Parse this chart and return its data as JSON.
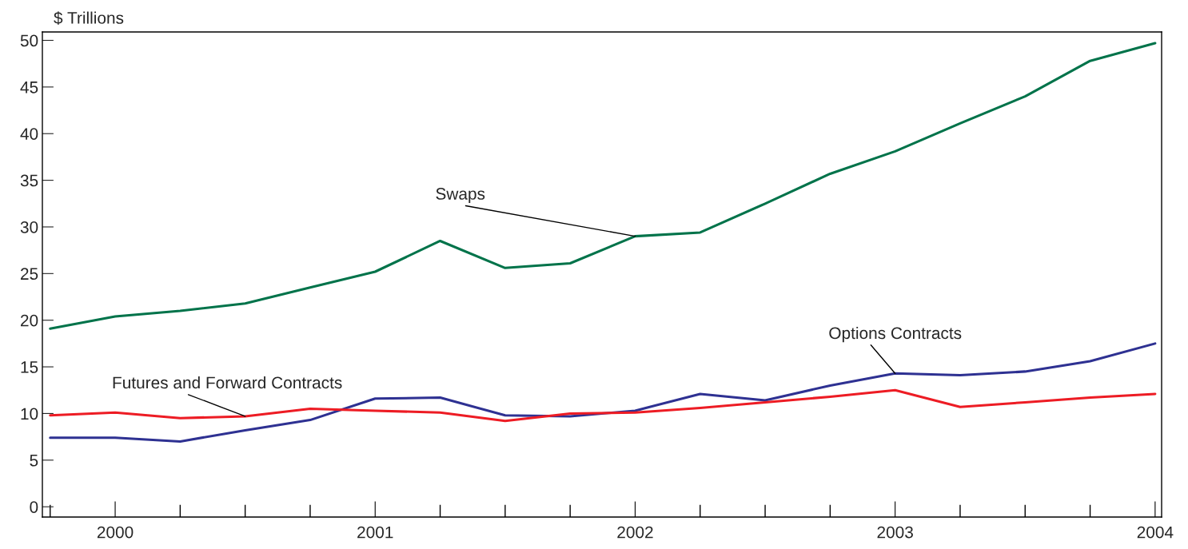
{
  "chart_data": {
    "type": "line",
    "ylabel": "$ Trillions",
    "x": [
      1999.75,
      2000.0,
      2000.25,
      2000.5,
      2000.75,
      2001.0,
      2001.25,
      2001.5,
      2001.75,
      2002.0,
      2002.25,
      2002.5,
      2002.75,
      2003.0,
      2003.25,
      2003.5,
      2003.75,
      2004.0
    ],
    "series": [
      {
        "name": "Swaps",
        "color": "#00734a",
        "values": [
          19.1,
          20.4,
          21.0,
          21.8,
          23.5,
          25.2,
          28.5,
          25.6,
          26.1,
          29.0,
          29.4,
          32.5,
          35.7,
          38.1,
          41.1,
          44.0,
          47.8,
          49.7
        ]
      },
      {
        "name": "Options Contracts",
        "color": "#2e3192",
        "values": [
          7.4,
          7.4,
          7.0,
          8.2,
          9.3,
          11.6,
          11.7,
          9.8,
          9.7,
          10.3,
          12.1,
          11.4,
          13.0,
          14.3,
          14.1,
          14.5,
          15.6,
          17.5
        ]
      },
      {
        "name": "Futures and Forward Contracts",
        "color": "#ed1c24",
        "values": [
          9.8,
          10.1,
          9.5,
          9.7,
          10.5,
          10.3,
          10.1,
          9.2,
          10.0,
          10.1,
          10.6,
          11.2,
          11.8,
          12.5,
          10.7,
          11.2,
          11.7,
          12.1
        ]
      }
    ],
    "xlim": [
      1999.72,
      2004.025
    ],
    "xticks": [
      {
        "value": 1999.75,
        "label": null
      },
      2000,
      {
        "value": 2000.25,
        "label": null
      },
      {
        "value": 2000.5,
        "label": null
      },
      {
        "value": 2000.75,
        "label": null
      },
      2001,
      {
        "value": 2001.25,
        "label": null
      },
      {
        "value": 2001.5,
        "label": null
      },
      {
        "value": 2001.75,
        "label": null
      },
      2002,
      {
        "value": 2002.25,
        "label": null
      },
      {
        "value": 2002.5,
        "label": null
      },
      {
        "value": 2002.75,
        "label": null
      },
      2003,
      {
        "value": 2003.25,
        "label": null
      },
      {
        "value": 2003.5,
        "label": null
      },
      {
        "value": 2003.75,
        "label": null
      },
      2004
    ],
    "ylim": [
      -1.1,
      50.9
    ],
    "yticks": [
      0,
      5,
      10,
      15,
      20,
      25,
      30,
      35,
      40,
      45,
      50
    ],
    "grid": false,
    "legend": false,
    "marker": "none",
    "line_style": "solid"
  }
}
